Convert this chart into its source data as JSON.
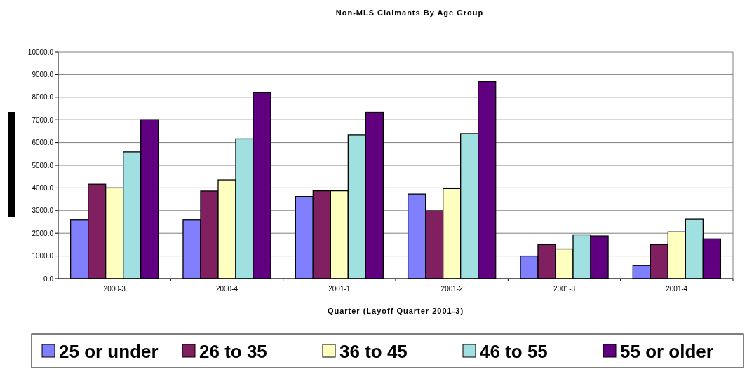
{
  "chart_data": {
    "type": "bar",
    "title": "Non-MLS Claimants By Age Group",
    "xlabel": "Quarter (Layoff Quarter 2001-3)",
    "categories": [
      "2000-3",
      "2000-4",
      "2001-1",
      "2001-2",
      "2001-3",
      "2001-4"
    ],
    "series": [
      {
        "name": "25 or under",
        "color": "#8080ff",
        "values": [
          2600,
          2600,
          3620,
          3730,
          1000,
          580
        ]
      },
      {
        "name": "26 to 35",
        "color": "#802060",
        "values": [
          4160,
          3860,
          3870,
          2990,
          1500,
          1500
        ]
      },
      {
        "name": "36 to 45",
        "color": "#ffffc0",
        "values": [
          4000,
          4350,
          3870,
          3970,
          1310,
          2060
        ]
      },
      {
        "name": "46 to 55",
        "color": "#a0e0e0",
        "values": [
          5590,
          6160,
          6330,
          6390,
          1930,
          2620
        ]
      },
      {
        "name": "55 or older",
        "color": "#600080",
        "values": [
          7000,
          8200,
          7330,
          8690,
          1880,
          1750
        ]
      }
    ],
    "ylim": [
      0,
      10000
    ],
    "yticks": [
      {
        "value": 0,
        "label": "0.0"
      },
      {
        "value": 1000,
        "label": "1000.0"
      },
      {
        "value": 2000,
        "label": "2000.0"
      },
      {
        "value": 3000,
        "label": "3000.0"
      },
      {
        "value": 4000,
        "label": "4000.0"
      },
      {
        "value": 5000,
        "label": "5000.0"
      },
      {
        "value": 6000,
        "label": "6000.0"
      },
      {
        "value": 7000,
        "label": "7000.0"
      },
      {
        "value": 8000,
        "label": "8000.0"
      },
      {
        "value": 9000,
        "label": "9000.0"
      },
      {
        "value": 10000,
        "label": "10000.0"
      }
    ],
    "grid": "y",
    "legend": "bottom"
  }
}
